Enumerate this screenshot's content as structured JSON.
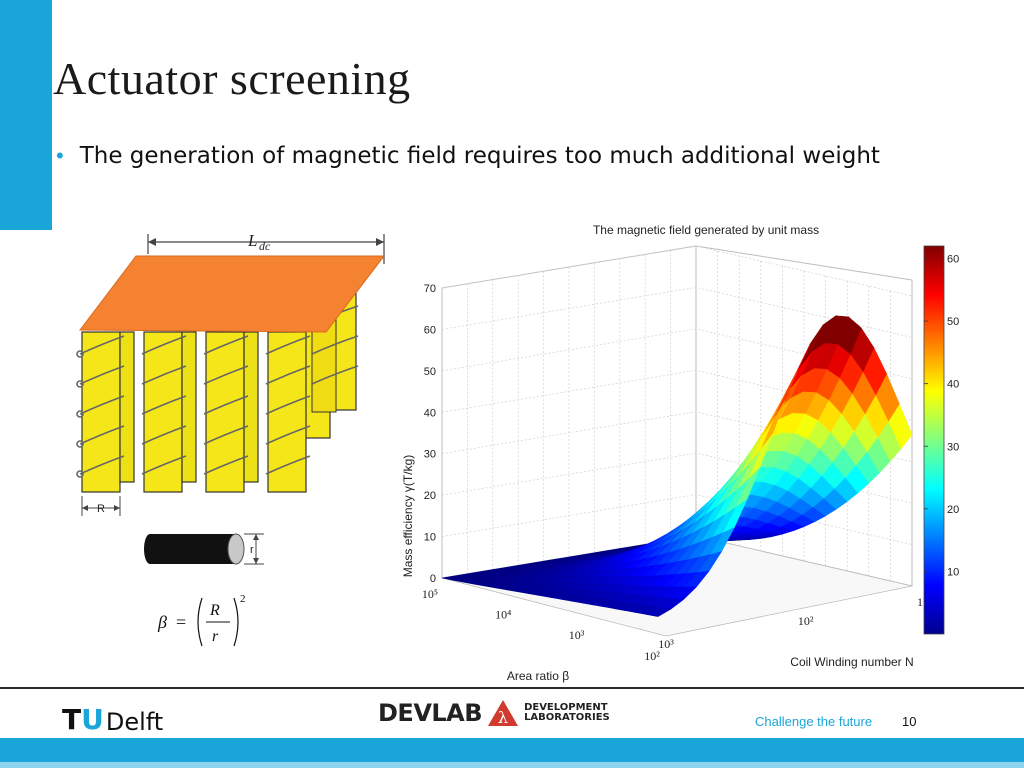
{
  "slide": {
    "title": "Actuator screening",
    "bullet": "The generation of magnetic field requires too much additional weight"
  },
  "diagram": {
    "length_label": "L",
    "length_subscript": "dc",
    "R_label": "R",
    "r_label": "r",
    "formula": {
      "beta": "β",
      "eq": "=",
      "numerator": "R",
      "denominator": "r",
      "exponent": "2"
    }
  },
  "chart_data": {
    "type": "surface3d",
    "title": "The magnetic field generated by unit mass",
    "zlabel": "Mass efficiency γ(T/kg)",
    "xlabel": "Area ratio β",
    "ylabel": "Coil Winding number N",
    "z_ticks": [
      "0",
      "10",
      "20",
      "30",
      "40",
      "50",
      "60",
      "70"
    ],
    "beta_ticks": [
      "10⁵",
      "10⁴",
      "10³",
      "10²"
    ],
    "n_ticks": [
      "10³",
      "10²",
      "1"
    ],
    "colorbar_ticks": [
      "60",
      "50",
      "40",
      "30",
      "20",
      "10"
    ],
    "zlim": [
      0,
      70
    ],
    "colorbar_range": [
      0,
      62
    ],
    "surface_peak": 62
  },
  "footer": {
    "tu_t": "T",
    "tu_u": "U",
    "tu_delft": "Delft",
    "devlab_name": "DEVLAB",
    "devlab_line1": "DEVELOPMENT",
    "devlab_line2": "LABORATORIES",
    "slogan": "Challenge the future",
    "page_number": "10"
  },
  "colors": {
    "accent": "#1aa6d9",
    "coil_yellow": "#f5e61a",
    "plate_orange": "#f58231"
  }
}
